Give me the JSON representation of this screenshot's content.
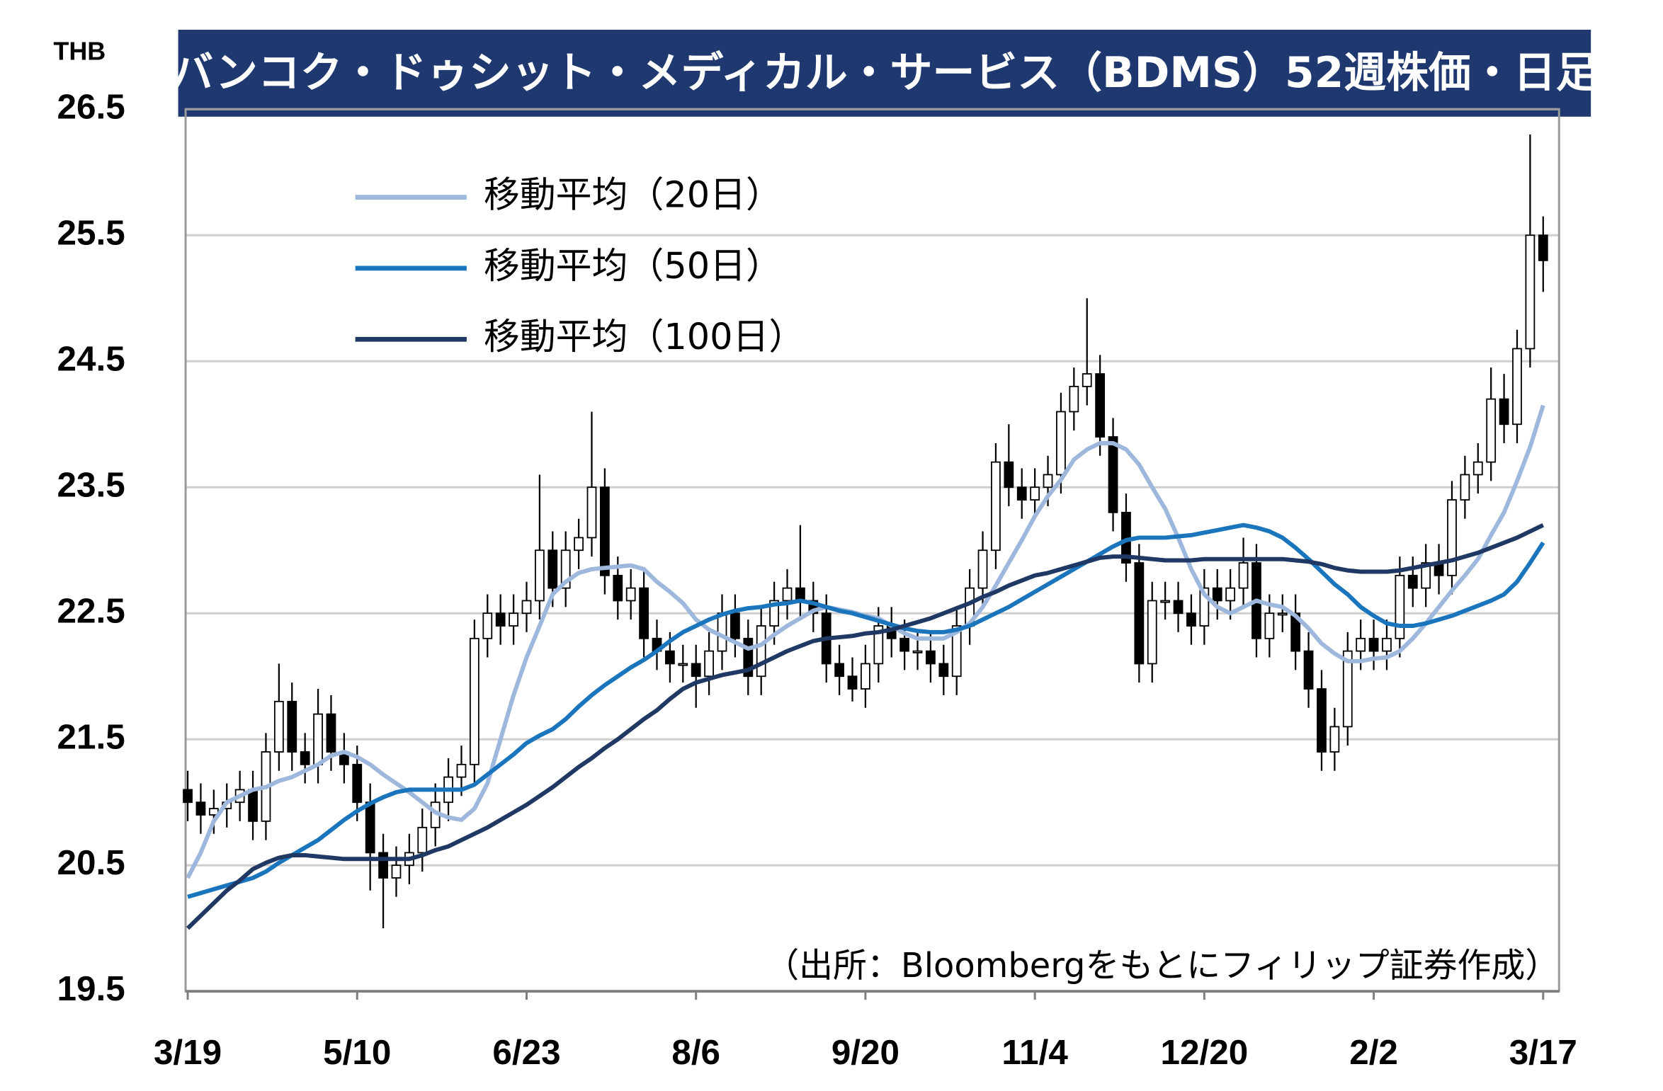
{
  "chart_data": {
    "type": "candlestick",
    "title": "バンコク・ドゥシット・メディカル・サービス（BDMS）52週株価・日足",
    "y_unit": "THB",
    "note": "（出所：Bloombergをもとにフィリップ証券作成）",
    "categories": [
      "3/19",
      null,
      null,
      null,
      null,
      null,
      null,
      null,
      null,
      null,
      null,
      null,
      null,
      "5/10",
      null,
      null,
      null,
      null,
      null,
      null,
      null,
      null,
      null,
      null,
      null,
      null,
      "6/23",
      null,
      null,
      null,
      null,
      null,
      null,
      null,
      null,
      null,
      null,
      null,
      null,
      "8/6",
      null,
      null,
      null,
      null,
      null,
      null,
      null,
      null,
      null,
      null,
      null,
      null,
      "9/20",
      null,
      null,
      null,
      null,
      null,
      null,
      null,
      null,
      null,
      null,
      null,
      null,
      "11/4",
      null,
      null,
      null,
      null,
      null,
      null,
      null,
      null,
      null,
      null,
      null,
      null,
      "12/20",
      null,
      null,
      null,
      null,
      null,
      null,
      null,
      null,
      null,
      null,
      null,
      null,
      "2/2",
      null,
      null,
      null,
      null,
      null,
      null,
      null,
      null,
      null,
      null,
      null,
      null,
      "3/17"
    ],
    "open": [
      21.1,
      21.0,
      20.9,
      20.95,
      21.0,
      21.1,
      20.85,
      21.4,
      21.8,
      21.4,
      21.3,
      21.7,
      21.4,
      21.3,
      21.0,
      20.6,
      20.4,
      20.5,
      20.6,
      20.8,
      21.0,
      21.2,
      21.3,
      22.3,
      22.5,
      22.4,
      22.5,
      22.6,
      23.0,
      22.7,
      23.0,
      23.1,
      23.5,
      22.8,
      22.6,
      22.7,
      22.3,
      22.2,
      22.1,
      22.1,
      22.0,
      22.2,
      22.5,
      22.3,
      22.0,
      22.4,
      22.6,
      22.7,
      22.6,
      22.5,
      22.1,
      22.0,
      21.9,
      22.1,
      22.4,
      22.3,
      22.2,
      22.2,
      22.1,
      22.0,
      22.4,
      22.7,
      23.0,
      23.7,
      23.5,
      23.4,
      23.5,
      23.6,
      24.1,
      24.3,
      24.4,
      23.9,
      23.3,
      22.9,
      22.1,
      22.6,
      22.6,
      22.5,
      22.4,
      22.7,
      22.6,
      22.7,
      22.9,
      22.3,
      22.5,
      22.5,
      22.2,
      21.9,
      21.4,
      21.6,
      22.2,
      22.3,
      22.2,
      22.3,
      22.8,
      22.7,
      22.9,
      22.8,
      23.4,
      23.6,
      23.7,
      24.2,
      24.0,
      24.6,
      25.5
    ],
    "high": [
      21.25,
      21.15,
      21.1,
      21.15,
      21.25,
      21.25,
      21.55,
      22.1,
      21.95,
      21.55,
      21.9,
      21.85,
      21.55,
      21.45,
      21.15,
      20.75,
      20.65,
      20.75,
      20.95,
      21.15,
      21.35,
      21.45,
      22.45,
      22.65,
      22.65,
      22.65,
      22.75,
      23.6,
      23.15,
      23.15,
      23.25,
      24.1,
      23.65,
      22.95,
      22.85,
      22.85,
      22.45,
      22.35,
      22.25,
      22.25,
      22.35,
      22.65,
      22.65,
      22.45,
      22.55,
      22.75,
      22.85,
      23.2,
      22.75,
      22.65,
      22.25,
      22.15,
      22.25,
      22.55,
      22.55,
      22.45,
      22.35,
      22.35,
      22.25,
      22.55,
      22.85,
      23.15,
      23.85,
      24.0,
      23.65,
      23.65,
      23.75,
      24.25,
      24.45,
      25.0,
      24.55,
      24.05,
      23.45,
      23.05,
      22.75,
      22.75,
      22.75,
      22.65,
      22.85,
      22.85,
      22.85,
      23.1,
      23.05,
      22.65,
      22.65,
      22.65,
      22.35,
      22.05,
      21.75,
      22.35,
      22.45,
      22.45,
      22.45,
      22.95,
      22.95,
      23.05,
      23.05,
      23.55,
      23.75,
      23.85,
      24.45,
      24.4,
      24.75,
      26.3,
      25.65
    ],
    "low": [
      20.85,
      20.75,
      20.75,
      20.8,
      20.85,
      20.7,
      20.7,
      21.25,
      21.25,
      21.15,
      21.15,
      21.25,
      21.15,
      20.85,
      20.3,
      20.0,
      20.25,
      20.35,
      20.45,
      20.65,
      20.85,
      21.05,
      21.15,
      22.15,
      22.25,
      22.25,
      22.35,
      22.45,
      22.55,
      22.55,
      22.85,
      22.95,
      22.65,
      22.45,
      22.45,
      22.15,
      22.05,
      21.95,
      21.95,
      21.75,
      21.85,
      22.05,
      22.15,
      21.85,
      21.85,
      22.25,
      22.45,
      22.45,
      22.35,
      21.95,
      21.85,
      21.8,
      21.75,
      21.95,
      22.15,
      22.05,
      22.05,
      21.95,
      21.85,
      21.85,
      22.25,
      22.55,
      22.85,
      23.35,
      23.25,
      23.25,
      23.35,
      23.45,
      23.95,
      24.15,
      23.75,
      23.15,
      22.75,
      21.95,
      21.95,
      22.45,
      22.35,
      22.25,
      22.25,
      22.45,
      22.45,
      22.55,
      22.15,
      22.15,
      22.35,
      22.05,
      21.75,
      21.25,
      21.25,
      21.45,
      22.05,
      22.05,
      22.05,
      22.15,
      22.55,
      22.55,
      22.65,
      22.65,
      23.25,
      23.45,
      23.55,
      23.85,
      23.85,
      24.45,
      25.05
    ],
    "close": [
      21.0,
      20.9,
      20.95,
      21.0,
      21.1,
      20.85,
      21.4,
      21.8,
      21.4,
      21.3,
      21.7,
      21.4,
      21.3,
      21.0,
      20.6,
      20.4,
      20.5,
      20.6,
      20.8,
      21.0,
      21.2,
      21.3,
      22.3,
      22.5,
      22.4,
      22.5,
      22.6,
      23.0,
      22.7,
      23.0,
      23.1,
      23.5,
      22.8,
      22.6,
      22.7,
      22.3,
      22.2,
      22.1,
      22.1,
      22.0,
      22.2,
      22.5,
      22.3,
      22.0,
      22.4,
      22.6,
      22.7,
      22.6,
      22.5,
      22.1,
      22.0,
      21.9,
      22.1,
      22.4,
      22.3,
      22.2,
      22.2,
      22.1,
      22.0,
      22.4,
      22.7,
      23.0,
      23.7,
      23.5,
      23.4,
      23.5,
      23.6,
      24.1,
      24.3,
      24.4,
      23.9,
      23.3,
      22.9,
      22.1,
      22.6,
      22.6,
      22.5,
      22.4,
      22.7,
      22.6,
      22.7,
      22.9,
      22.3,
      22.5,
      22.5,
      22.2,
      21.9,
      21.4,
      21.6,
      22.2,
      22.3,
      22.2,
      22.3,
      22.8,
      22.7,
      22.9,
      22.8,
      23.4,
      23.6,
      23.7,
      24.2,
      24.0,
      24.6,
      25.5,
      25.3
    ],
    "series": [
      {
        "name": "移動平均（20日）",
        "color": "#9db8dc",
        "values": [
          20.4,
          20.6,
          20.85,
          21.0,
          21.05,
          21.1,
          21.12,
          21.17,
          21.2,
          21.25,
          21.3,
          21.37,
          21.4,
          21.36,
          21.3,
          21.22,
          21.15,
          21.08,
          21.0,
          20.92,
          20.88,
          20.86,
          20.95,
          21.15,
          21.5,
          21.85,
          22.15,
          22.4,
          22.65,
          22.75,
          22.82,
          22.85,
          22.86,
          22.87,
          22.88,
          22.85,
          22.75,
          22.67,
          22.58,
          22.45,
          22.37,
          22.32,
          22.27,
          22.22,
          22.25,
          22.33,
          22.4,
          22.46,
          22.52,
          22.55,
          22.53,
          22.51,
          22.48,
          22.46,
          22.4,
          22.34,
          22.3,
          22.3,
          22.3,
          22.35,
          22.42,
          22.55,
          22.72,
          22.9,
          23.08,
          23.27,
          23.43,
          23.56,
          23.72,
          23.8,
          23.85,
          23.85,
          23.8,
          23.68,
          23.5,
          23.33,
          23.1,
          22.85,
          22.65,
          22.55,
          22.5,
          22.55,
          22.6,
          22.57,
          22.55,
          22.48,
          22.38,
          22.26,
          22.18,
          22.12,
          22.12,
          22.14,
          22.15,
          22.2,
          22.3,
          22.42,
          22.55,
          22.68,
          22.8,
          22.93,
          23.12,
          23.3,
          23.55,
          23.82,
          24.15
        ]
      },
      {
        "name": "移動平均（50日）",
        "color": "#1a75bc",
        "values": [
          20.25,
          20.28,
          20.31,
          20.34,
          20.37,
          20.4,
          20.45,
          20.52,
          20.58,
          20.64,
          20.7,
          20.78,
          20.86,
          20.93,
          20.99,
          21.04,
          21.08,
          21.1,
          21.1,
          21.1,
          21.1,
          21.1,
          21.14,
          21.22,
          21.3,
          21.38,
          21.47,
          21.53,
          21.58,
          21.66,
          21.76,
          21.85,
          21.93,
          22.0,
          22.07,
          22.13,
          22.2,
          22.28,
          22.35,
          22.4,
          22.45,
          22.49,
          22.52,
          22.54,
          22.55,
          22.57,
          22.58,
          22.6,
          22.58,
          22.55,
          22.52,
          22.5,
          22.47,
          22.44,
          22.41,
          22.38,
          22.36,
          22.35,
          22.35,
          22.37,
          22.4,
          22.45,
          22.5,
          22.55,
          22.61,
          22.67,
          22.73,
          22.79,
          22.85,
          22.91,
          22.97,
          23.03,
          23.08,
          23.1,
          23.1,
          23.1,
          23.11,
          23.12,
          23.14,
          23.16,
          23.18,
          23.2,
          23.18,
          23.15,
          23.1,
          23.02,
          22.93,
          22.83,
          22.73,
          22.65,
          22.55,
          22.48,
          22.42,
          22.4,
          22.4,
          22.42,
          22.45,
          22.48,
          22.52,
          22.56,
          22.6,
          22.65,
          22.75,
          22.9,
          23.06
        ]
      },
      {
        "name": "移動平均（100日）",
        "color": "#1f3864",
        "values": [
          20.0,
          20.1,
          20.2,
          20.3,
          20.38,
          20.47,
          20.52,
          20.56,
          20.58,
          20.58,
          20.57,
          20.56,
          20.55,
          20.55,
          20.55,
          20.55,
          20.55,
          20.55,
          20.58,
          20.62,
          20.65,
          20.7,
          20.75,
          20.8,
          20.86,
          20.92,
          20.98,
          21.05,
          21.12,
          21.2,
          21.28,
          21.35,
          21.43,
          21.5,
          21.58,
          21.66,
          21.73,
          21.82,
          21.9,
          21.95,
          21.98,
          22.01,
          22.03,
          22.05,
          22.1,
          22.15,
          22.2,
          22.24,
          22.28,
          22.3,
          22.31,
          22.32,
          22.34,
          22.35,
          22.37,
          22.4,
          22.43,
          22.46,
          22.5,
          22.54,
          22.58,
          22.63,
          22.67,
          22.72,
          22.76,
          22.8,
          22.82,
          22.85,
          22.88,
          22.91,
          22.94,
          22.95,
          22.95,
          22.94,
          22.93,
          22.92,
          22.92,
          22.92,
          22.93,
          22.93,
          22.93,
          22.93,
          22.93,
          22.93,
          22.93,
          22.92,
          22.91,
          22.89,
          22.86,
          22.84,
          22.83,
          22.83,
          22.83,
          22.84,
          22.86,
          22.88,
          22.9,
          22.92,
          22.95,
          22.98,
          23.02,
          23.06,
          23.1,
          23.15,
          23.2
        ]
      }
    ],
    "up_color": "#ffffff",
    "down_color": "#000000",
    "ylim": [
      19.5,
      26.5
    ],
    "yticks": [
      19.5,
      20.5,
      21.5,
      22.5,
      23.5,
      24.5,
      25.5,
      26.5
    ],
    "grid": true
  }
}
